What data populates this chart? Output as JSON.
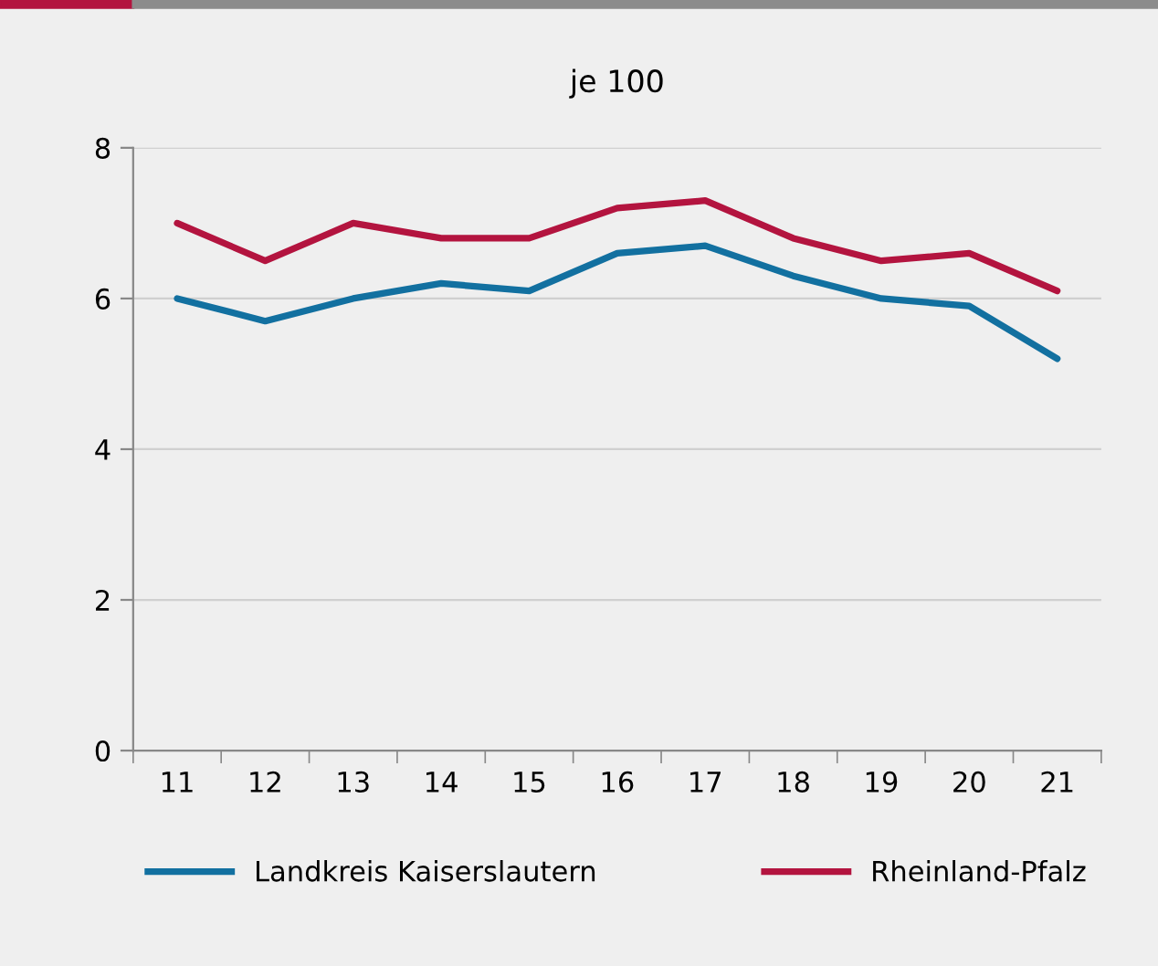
{
  "chart_data": {
    "type": "line",
    "title": "je 100",
    "categories": [
      "11",
      "12",
      "13",
      "14",
      "15",
      "16",
      "17",
      "18",
      "19",
      "20",
      "21"
    ],
    "series": [
      {
        "name": "Landkreis Kaiserslautern",
        "color": "#1270a0",
        "values": [
          6.0,
          5.7,
          6.0,
          6.2,
          6.1,
          6.6,
          6.7,
          6.3,
          6.0,
          5.9,
          5.2
        ]
      },
      {
        "name": "Rheinland-Pfalz",
        "color": "#b3143f",
        "values": [
          7.0,
          6.5,
          7.0,
          6.8,
          6.8,
          7.2,
          7.3,
          6.8,
          6.5,
          6.6,
          6.1
        ]
      }
    ],
    "ylim": [
      0,
      8
    ],
    "yticks": [
      0,
      2,
      4,
      6,
      8
    ],
    "grid": "y",
    "legend": "bottom",
    "marker": "none",
    "line_style": "solid"
  }
}
